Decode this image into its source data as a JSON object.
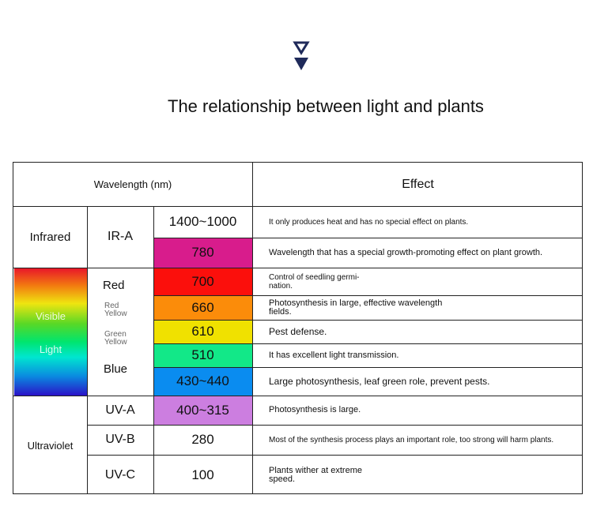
{
  "title": "The relationship between light and plants",
  "header": {
    "wavelength": "Wavelength (nm)",
    "effect": "Effect"
  },
  "categories": {
    "infrared": "Infrared",
    "visible": "Visible",
    "light": "Light",
    "ultraviolet": "Ultraviolet"
  },
  "subbands": {
    "ira": "IR-A",
    "red": "Red",
    "red_yellow_1": "Red",
    "red_yellow_2": "Yellow",
    "green_yellow_1": "Green",
    "green_yellow_2": "Yellow",
    "blue": "Blue",
    "uva": "UV-A",
    "uvb": "UV-B",
    "uvc": "UV-C"
  },
  "rows": [
    {
      "wavelength": "1400~1000",
      "color": "#ffffff",
      "effect_lines": [
        "It only produces heat and has no special effect on plants."
      ]
    },
    {
      "wavelength": "780",
      "color": "#d81c8c",
      "effect_lines": [
        "Wavelength that has a special growth-promoting effect on plant growth."
      ]
    },
    {
      "wavelength": "700",
      "color": "#fb0f0c",
      "effect_lines": [
        "Control of seedling germi-",
        "nation."
      ]
    },
    {
      "wavelength": "660",
      "color": "#fb8c0a",
      "effect_lines": [
        "Photosynthesis in large, effective wavelength",
        "fields."
      ]
    },
    {
      "wavelength": "610",
      "color": "#f0e100",
      "effect_lines": [
        "Pest defense."
      ]
    },
    {
      "wavelength": "510",
      "color": "#12e888",
      "effect_lines": [
        "It has excellent light transmission."
      ]
    },
    {
      "wavelength": "430~440",
      "color": "#0a8cf0",
      "effect_lines": [
        "Large photosynthesis, leaf green role, prevent pests."
      ]
    },
    {
      "wavelength": "400~315",
      "color": "#cc7ee0",
      "effect_lines": [
        "Photosynthesis is large."
      ]
    },
    {
      "wavelength": "280",
      "color": "#ffffff",
      "effect_lines": [
        "Most of the synthesis process plays an important role, too strong will harm plants."
      ]
    },
    {
      "wavelength": "100",
      "color": "#ffffff",
      "effect_lines": [
        "Plants wither at extreme",
        "speed."
      ]
    }
  ],
  "colors": {
    "arrow": "#1f2a5a",
    "border": "#222222"
  }
}
